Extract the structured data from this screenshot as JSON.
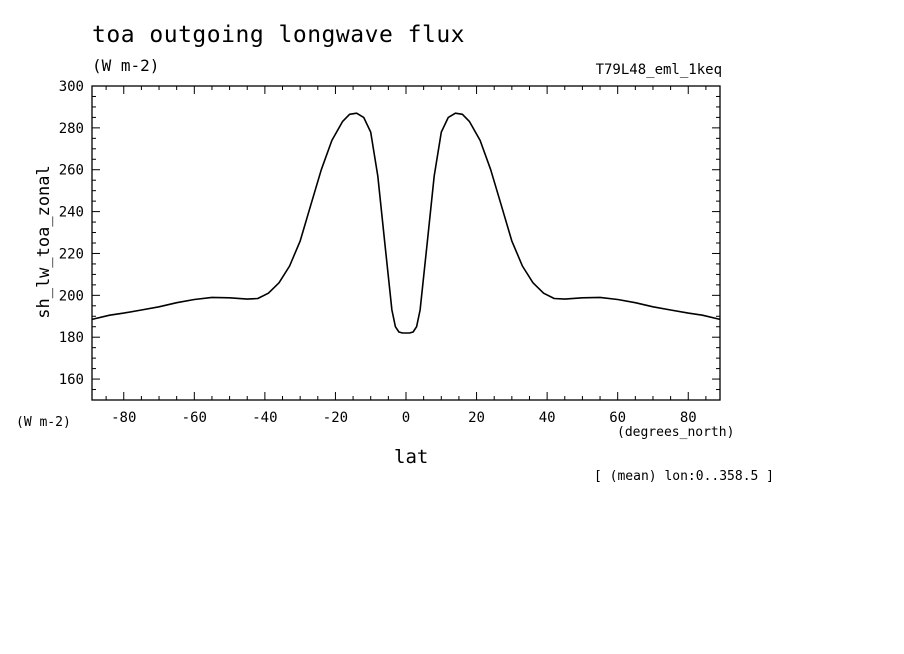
{
  "chart_data": {
    "type": "line",
    "title": "toa outgoing longwave flux",
    "subtitle": "(W m-2)",
    "dataset_label": "T79L48_eml_1keq",
    "xlabel": "lat",
    "xunits": "(degrees_north)",
    "ylabel": "sh_lw_toa_zonal",
    "yunits": "(W m-2)",
    "annotation": "[ (mean) lon:0..358.5 ]",
    "xlim": [
      -89,
      89
    ],
    "ylim": [
      150,
      300
    ],
    "x_ticks": [
      -80,
      -60,
      -40,
      -20,
      0,
      20,
      40,
      60,
      80
    ],
    "x_tick_labels": [
      "-80",
      "-60",
      "-40",
      "-20",
      "0",
      "20",
      "40",
      "60",
      "80"
    ],
    "y_ticks": [
      160,
      180,
      200,
      220,
      240,
      260,
      280,
      300
    ],
    "y_tick_labels": [
      "160",
      "180",
      "200",
      "220",
      "240",
      "260",
      "280",
      "300"
    ],
    "grid": false,
    "series": [
      {
        "color": "#000000",
        "x": [
          -89,
          -84,
          -80,
          -75,
          -70,
          -65,
          -60,
          -55,
          -50,
          -45,
          -42,
          -39,
          -36,
          -33,
          -30,
          -27,
          -24,
          -21,
          -18,
          -16,
          -14,
          -12,
          -10,
          -8,
          -6,
          -4,
          -3,
          -2,
          -1,
          0,
          1,
          2,
          3,
          4,
          6,
          8,
          10,
          12,
          14,
          16,
          18,
          21,
          24,
          27,
          30,
          33,
          36,
          39,
          42,
          45,
          50,
          55,
          60,
          65,
          70,
          75,
          80,
          84,
          89
        ],
        "y": [
          188.5,
          190.5,
          191.5,
          193,
          194.5,
          196.5,
          198,
          199,
          198.8,
          198.2,
          198.5,
          201,
          206,
          214,
          226,
          243,
          260,
          274,
          283,
          286.5,
          287,
          285,
          278,
          257,
          225,
          193,
          185,
          182.5,
          182,
          182,
          182,
          182.5,
          185,
          193,
          225,
          257,
          278,
          285,
          287,
          286.5,
          283,
          274,
          260,
          243,
          226,
          214,
          206,
          201,
          198.5,
          198.2,
          198.8,
          199,
          198,
          196.5,
          194.5,
          193,
          191.5,
          190.5,
          188.5
        ]
      }
    ]
  }
}
